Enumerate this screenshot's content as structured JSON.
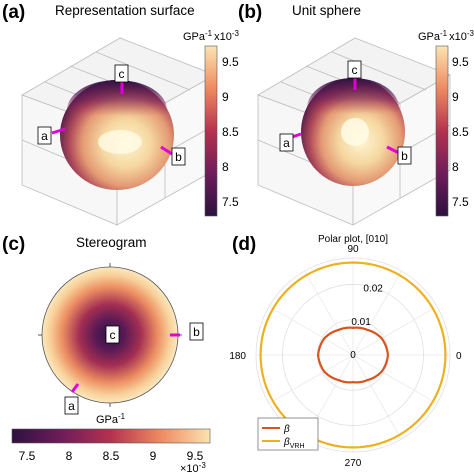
{
  "panels": {
    "a": {
      "letter": "(a)",
      "title": "Representation surface"
    },
    "b": {
      "letter": "(b)",
      "title": "Unit sphere"
    },
    "c": {
      "letter": "(c)",
      "title": "Stereogram"
    },
    "d": {
      "letter": "(d)"
    }
  },
  "colorbar_vertical": {
    "unit": "GPa",
    "unit_exp": "-1",
    "scale_prefix": "x10",
    "scale_exp": "-3",
    "ticks": [
      "9.5",
      "9",
      "8.5",
      "8",
      "7.5"
    ]
  },
  "colorbar_horizontal": {
    "unit": "GPa",
    "unit_exp": "-1",
    "scale_prefix": "×10",
    "scale_exp": "-3",
    "ticks": [
      "7.5",
      "8",
      "8.5",
      "9",
      "9.5"
    ]
  },
  "axis_labels": {
    "a": "a",
    "b": "b",
    "c": "c"
  },
  "colors": {
    "beta": "#d9531e",
    "beta_vrh": "#edb120",
    "marker": "#e000d8",
    "map_low": "#2d1140",
    "map_mid": "#b4324f",
    "map_high": "#fbe4b2"
  },
  "chart_data": [
    {
      "type": "polar",
      "title": "Polar plot, [010]",
      "theta_ticks": [
        "90",
        "180",
        "270",
        "0"
      ],
      "r_ticks": [
        "0",
        "0.01",
        "0.02"
      ],
      "rlim": [
        0,
        0.0275
      ],
      "legend": {
        "placement": "bottom-left"
      },
      "series": [
        {
          "name": "β",
          "color": "#d9531e",
          "theta_deg": [
            0,
            30,
            60,
            90,
            120,
            150,
            180,
            210,
            240,
            270,
            300,
            330,
            360
          ],
          "r": [
            0.0099,
            0.0094,
            0.0082,
            0.0077,
            0.0082,
            0.0094,
            0.0099,
            0.0094,
            0.0082,
            0.0077,
            0.0082,
            0.0094,
            0.0099
          ]
        },
        {
          "name": "β_VRH",
          "name_main": "β",
          "name_sub": "VRH",
          "color": "#edb120",
          "theta_deg": [
            0,
            90,
            180,
            270,
            360
          ],
          "r": [
            0.0262,
            0.0262,
            0.0262,
            0.0262,
            0.0262
          ]
        }
      ]
    }
  ]
}
